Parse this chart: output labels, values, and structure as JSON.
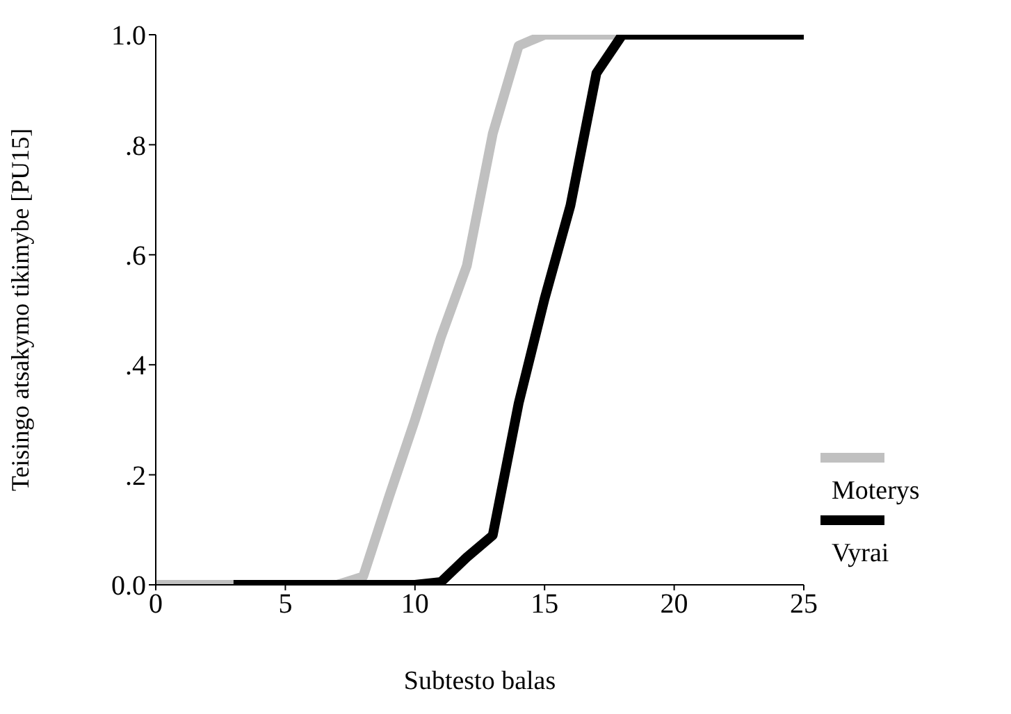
{
  "chart_data": {
    "type": "line",
    "xlabel": "Subtesto balas",
    "ylabel": "Teisingo atsakymo tikimybe [PU15]",
    "xlim": [
      0,
      25
    ],
    "xticks": [
      0,
      5,
      10,
      15,
      20,
      25
    ],
    "ylim": [
      0,
      1
    ],
    "yticks": [
      {
        "value": 0,
        "label": "0.0"
      },
      {
        "value": 0.2,
        "label": ".2"
      },
      {
        "value": 0.4,
        "label": ".4"
      },
      {
        "value": 0.6,
        "label": ".6"
      },
      {
        "value": 0.8,
        "label": ".8"
      },
      {
        "value": 1,
        "label": "1.0"
      }
    ],
    "grid": false,
    "legend": "bottom right",
    "marker": "none",
    "line_style": "solid",
    "series": [
      {
        "name": "Moterys",
        "color": "#c0c0c0",
        "x": [
          0,
          7,
          8,
          9,
          10,
          11,
          12,
          13,
          14,
          15,
          16,
          17,
          18
        ],
        "values": [
          0,
          0,
          0.015,
          0.16,
          0.3,
          0.45,
          0.58,
          0.82,
          0.98,
          1,
          1,
          1,
          1
        ]
      },
      {
        "name": "Vyrai",
        "color": "#000000",
        "x": [
          3,
          10,
          11,
          12,
          13,
          14,
          15,
          16,
          17,
          18,
          19,
          20,
          21,
          22,
          23,
          24,
          25
        ],
        "values": [
          0,
          0,
          0.005,
          0.05,
          0.09,
          0.33,
          0.52,
          0.69,
          0.93,
          1,
          1,
          1,
          1,
          1,
          1,
          1,
          1
        ]
      }
    ]
  }
}
